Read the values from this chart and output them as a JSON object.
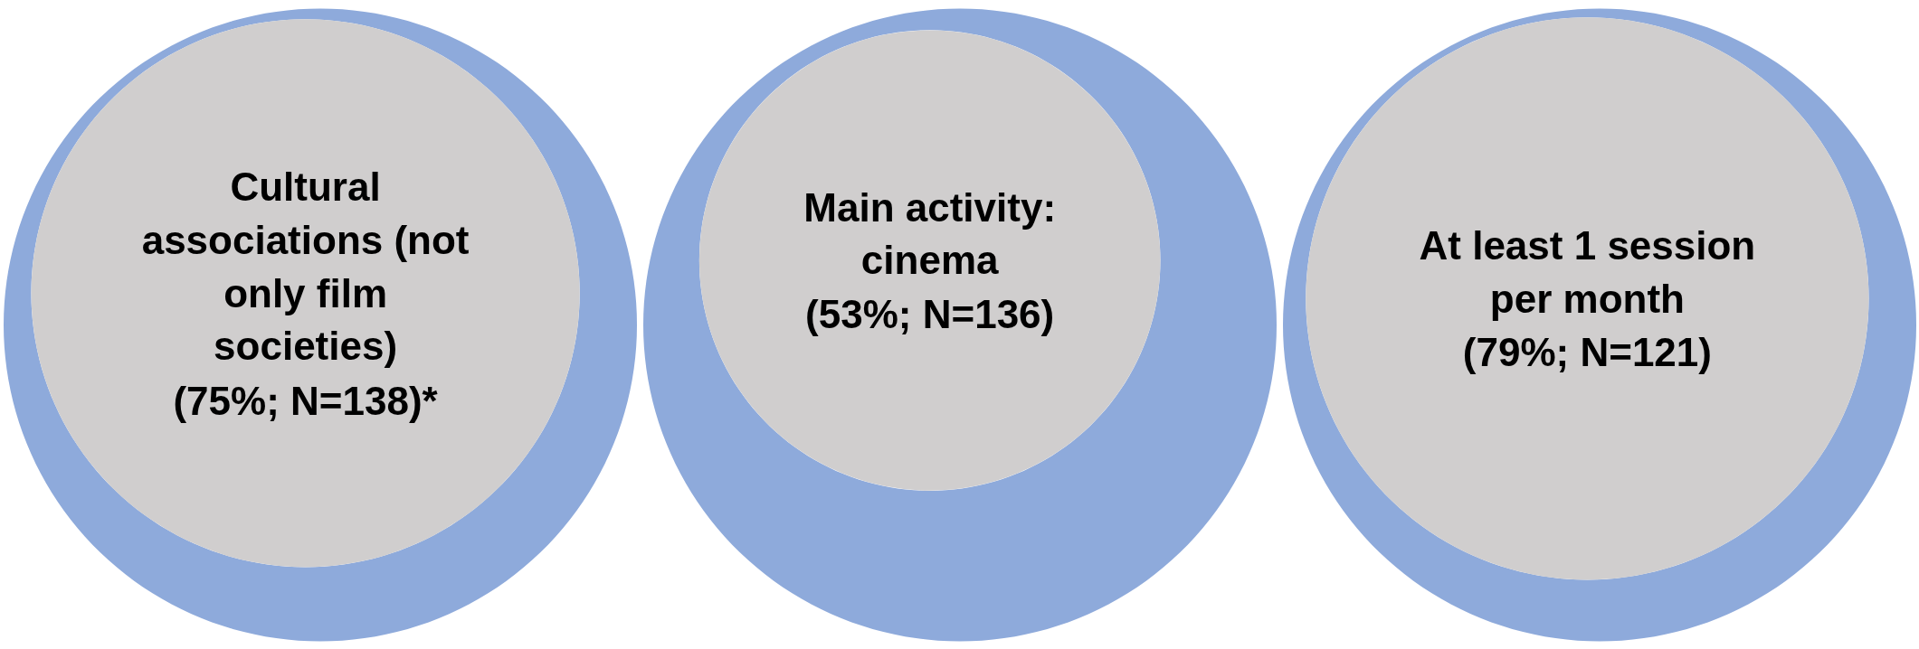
{
  "chart_data": {
    "type": "other",
    "categories": [
      "Cultural associations (not only film societies)",
      "Main activity: cinema",
      "At least 1 session per month"
    ],
    "series": [
      {
        "color": "#d0cece",
        "values": [
          75,
          53,
          79
        ],
        "value_labels": [
          "(75%; N=138)*",
          "(53%; N=136)",
          "(79%; N=121)"
        ]
      }
    ],
    "color": "#8eaadb"
  }
}
